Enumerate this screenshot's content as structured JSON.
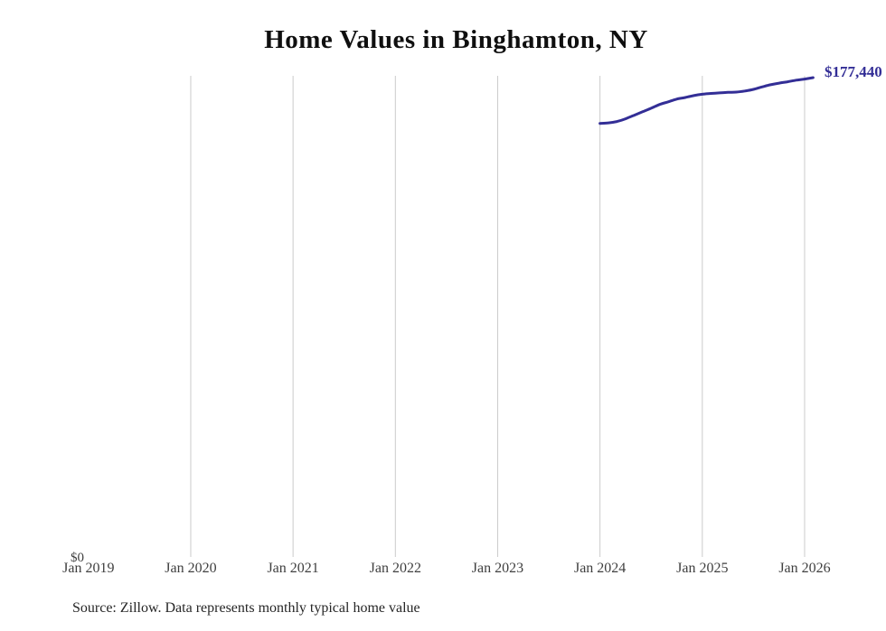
{
  "page": {
    "title": "Home Values in Binghamton, NY",
    "source_note": "Source: Zillow. Data represents monthly typical home value"
  },
  "colors": {
    "line": "#332e96",
    "end_label_text": "#332e96",
    "gridline": "#cbcbcb",
    "title_text": "#0f0f0f",
    "axis_text": "#3f3f3f",
    "source_text": "#262626",
    "background": "#ffffff"
  },
  "chart_data": {
    "type": "line",
    "title": "Home Values in Binghamton, NY",
    "xlabel": "",
    "ylabel": "",
    "grid": "vertical-only",
    "legend": "none",
    "x_axis": {
      "ticks": [
        {
          "label": "Jan 2019",
          "gridline": false
        },
        {
          "label": "Jan 2020",
          "gridline": true
        },
        {
          "label": "Jan 2021",
          "gridline": true
        },
        {
          "label": "Jan 2022",
          "gridline": true
        },
        {
          "label": "Jan 2023",
          "gridline": true
        },
        {
          "label": "Jan 2024",
          "gridline": true
        },
        {
          "label": "Jan 2025",
          "gridline": true
        },
        {
          "label": "Jan 2026",
          "gridline": true
        }
      ]
    },
    "y_axis": {
      "zero_label": "$0",
      "ylim": [
        0,
        177800
      ]
    },
    "series": [
      {
        "name": "Typical home value",
        "end_label": "$177,440",
        "x": [
          "2024-01",
          "2024-02",
          "2024-03",
          "2024-04",
          "2024-05",
          "2024-06",
          "2024-07",
          "2024-08",
          "2024-09",
          "2024-10",
          "2024-11",
          "2024-12",
          "2025-01",
          "2025-02",
          "2025-03",
          "2025-04",
          "2025-05",
          "2025-06",
          "2025-07",
          "2025-08",
          "2025-09",
          "2025-10",
          "2025-11",
          "2025-12",
          "2026-01",
          "2026-02"
        ],
        "values": [
          160500,
          160700,
          161200,
          162200,
          163500,
          164800,
          166100,
          167500,
          168500,
          169500,
          170100,
          170800,
          171300,
          171600,
          171800,
          172000,
          172100,
          172500,
          173100,
          174000,
          174800,
          175400,
          175900,
          176500,
          176900,
          177440
        ]
      }
    ]
  }
}
